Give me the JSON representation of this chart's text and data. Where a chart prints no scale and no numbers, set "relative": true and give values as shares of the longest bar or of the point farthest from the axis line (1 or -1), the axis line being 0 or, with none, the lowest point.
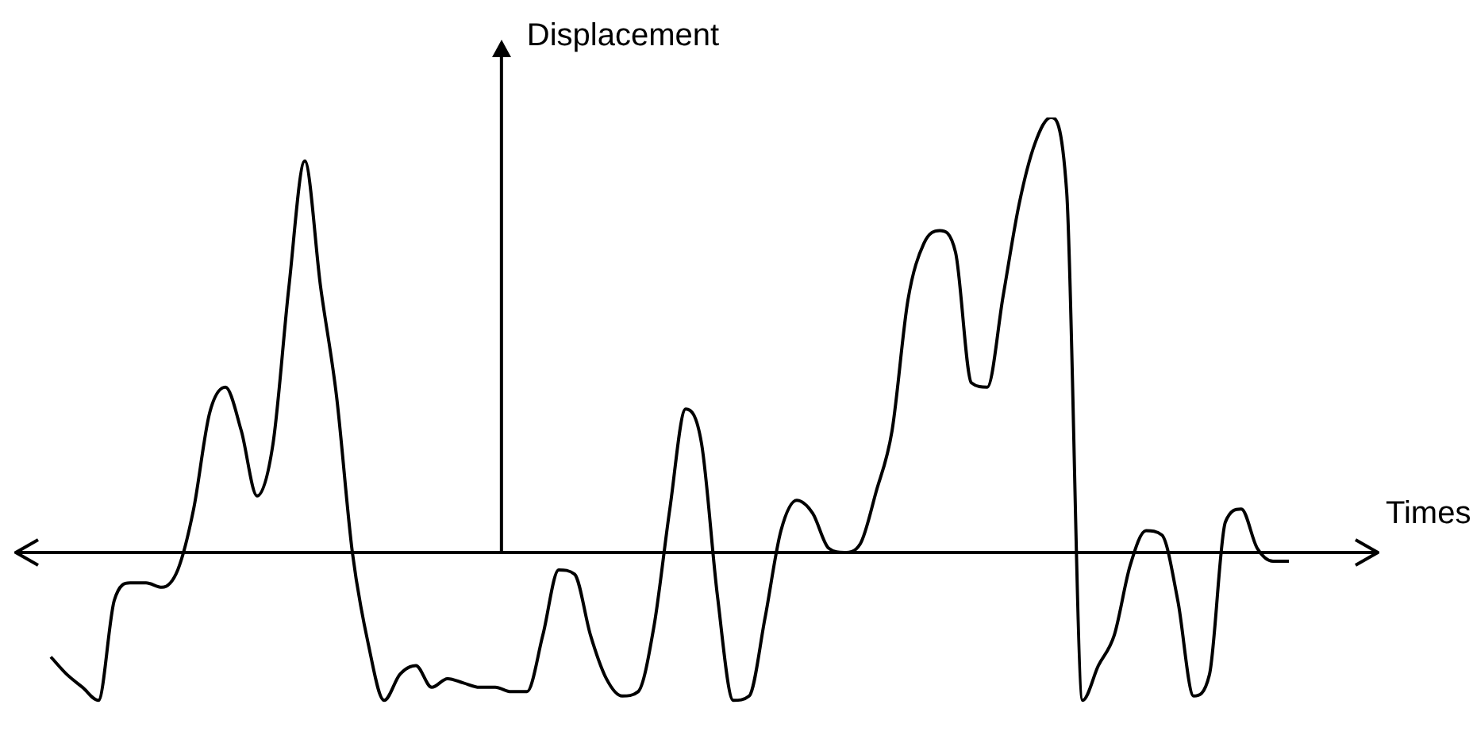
{
  "chart_data": {
    "type": "line",
    "relative": true,
    "xlabel": "Times",
    "ylabel": "Displacement",
    "marker": "none",
    "tick_labels": false,
    "categories": [
      null,
      null,
      null,
      null,
      null,
      null,
      null,
      null,
      null,
      null,
      null,
      null,
      null,
      null,
      null,
      null,
      null,
      null,
      null,
      null,
      null,
      null,
      null,
      null,
      null,
      null,
      null,
      null,
      null,
      null,
      null,
      null,
      null,
      null,
      null,
      null,
      null,
      null,
      null,
      null,
      null,
      null,
      null,
      null,
      null,
      null,
      null,
      null,
      null,
      null,
      null,
      null,
      null,
      null,
      null,
      null,
      null,
      null,
      null,
      null,
      null,
      null,
      null,
      null,
      null,
      null,
      null,
      null,
      null,
      null,
      null,
      null,
      null,
      null,
      null,
      null,
      null,
      null,
      null
    ],
    "series": [
      {
        "color": "#000000",
        "values": [
          -0.24,
          -0.28,
          -0.31,
          -0.34,
          -0.11,
          -0.07,
          -0.07,
          -0.08,
          -0.04,
          0.1,
          0.32,
          0.38,
          0.28,
          0.13,
          0.25,
          0.61,
          0.9,
          0.61,
          0.36,
          0.0,
          -0.21,
          -0.34,
          -0.28,
          -0.26,
          -0.31,
          -0.29,
          -0.3,
          -0.31,
          -0.31,
          -0.32,
          -0.32,
          -0.19,
          -0.04,
          -0.05,
          -0.19,
          -0.29,
          -0.33,
          -0.32,
          -0.17,
          0.1,
          0.33,
          0.25,
          -0.1,
          -0.34,
          -0.33,
          -0.15,
          0.05,
          0.12,
          0.09,
          0.01,
          0.0,
          0.02,
          0.14,
          0.28,
          0.58,
          0.71,
          0.74,
          0.69,
          0.39,
          0.38,
          0.59,
          0.8,
          0.94,
          1.0,
          0.83,
          -0.34,
          -0.26,
          -0.19,
          -0.03,
          0.05,
          0.04,
          -0.11,
          -0.33,
          -0.28,
          0.07,
          0.1,
          0.01,
          -0.02,
          -0.02
        ]
      }
    ]
  }
}
